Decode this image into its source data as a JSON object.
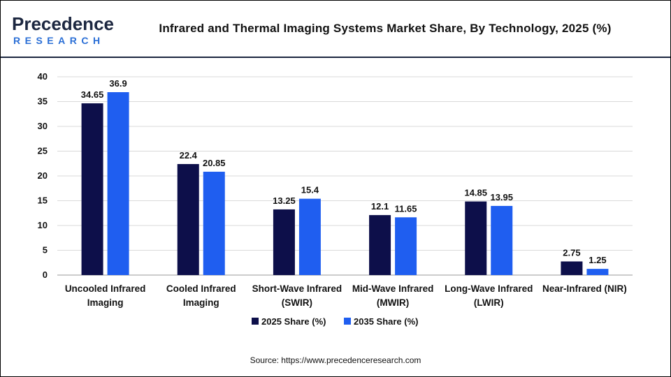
{
  "brand": {
    "name_top": "Precedence",
    "name_bottom": "RESEARCH",
    "color_dark": "#1c2740",
    "color_accent": "#2b6fd6"
  },
  "title": "Infrared and Thermal Imaging Systems Market Share, By Technology, 2025 (%)",
  "source": "Source: https://www.precedenceresearch.com",
  "chart_data": {
    "type": "bar",
    "categories": [
      [
        "Uncooled Infrared",
        "Imaging"
      ],
      [
        "Cooled Infrared",
        "Imaging"
      ],
      [
        "Short-Wave Infrared",
        "(SWIR)"
      ],
      [
        "Mid-Wave Infrared",
        "(MWIR)"
      ],
      [
        "Long-Wave Infrared",
        "(LWIR)"
      ],
      [
        "Near-Infrared (NIR)"
      ]
    ],
    "series": [
      {
        "name": "2025 Share (%)",
        "color": "#0d0f4a",
        "values": [
          34.65,
          22.4,
          13.25,
          12.1,
          14.85,
          2.75
        ],
        "labels": [
          "34.65",
          "22.4",
          "13.25",
          "12.1",
          "14.85",
          "2.75"
        ]
      },
      {
        "name": "2035 Share (%)",
        "color": "#1f5ef0",
        "values": [
          36.9,
          20.85,
          15.4,
          11.65,
          13.95,
          1.25
        ],
        "labels": [
          "36.9",
          "20.85",
          "15.4",
          "11.65",
          "13.95",
          "1.25"
        ]
      }
    ],
    "yticks": [
      "0",
      "5",
      "10",
      "15",
      "20",
      "25",
      "30",
      "35",
      "40"
    ],
    "ylim": [
      0,
      40
    ],
    "grid": true,
    "legend": "bottom-center"
  }
}
